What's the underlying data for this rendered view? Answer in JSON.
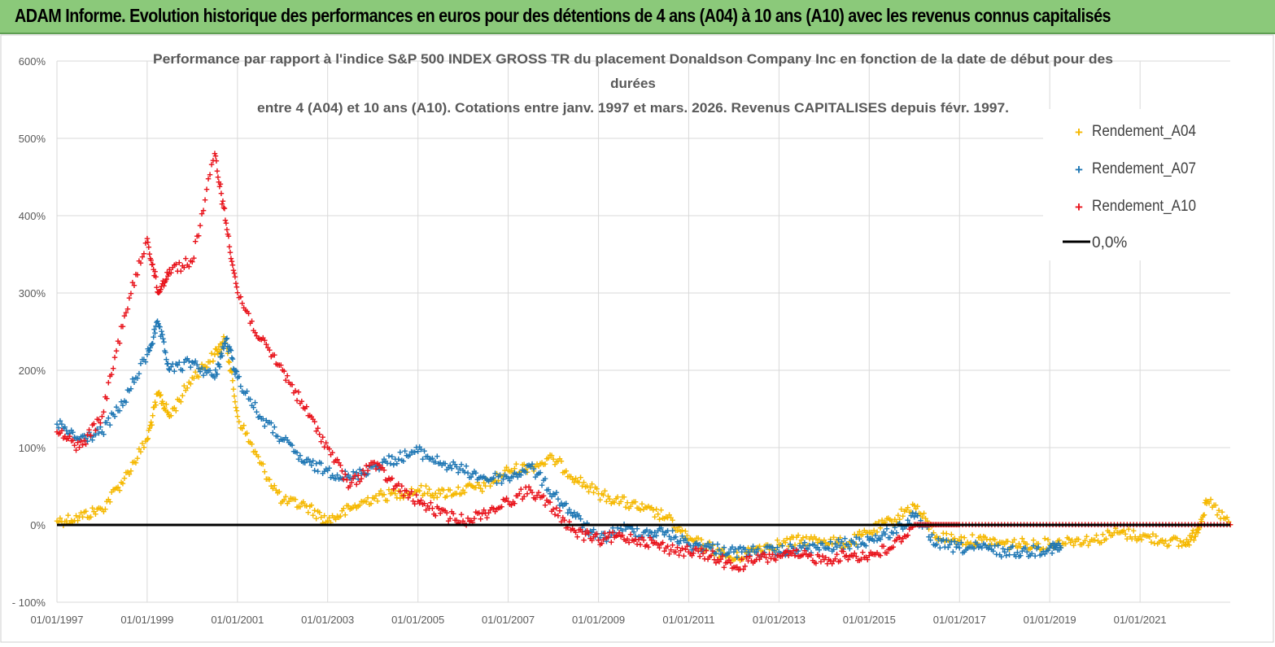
{
  "banner": {
    "title": "ADAM Informe. Evolution historique des performances en euros pour des détentions de 4 ans (A04) à 10 ans (A10) avec les revenus connus capitalisés"
  },
  "colors": {
    "banner_bg": "#8bc97a",
    "A04": "#f5b800",
    "A07": "#1f77b4",
    "A10": "#e8131b",
    "zero_line": "#000000",
    "grid": "#d9d9d9"
  },
  "chart_data": {
    "type": "scatter",
    "title_lines": [
      "Performance par rapport à l'indice S&P 500 INDEX GROSS TR  du placement Donaldson Company Inc en fonction de la date de début pour des",
      "durées",
      "entre 4 (A04) et 10 ans (A10).  Cotations entre janv. 1997 et mars. 2026.  Revenus CAPITALISES depuis févr. 1997."
    ],
    "xlabel": "",
    "ylabel": "",
    "x_range": [
      "1997-01-01",
      "2023-01-01"
    ],
    "x_ticks": [
      "01/01/1997",
      "01/01/1999",
      "01/01/2001",
      "01/01/2003",
      "01/01/2005",
      "01/01/2007",
      "01/01/2009",
      "01/01/2011",
      "01/01/2013",
      "01/01/2015",
      "01/01/2017",
      "01/01/2019",
      "01/01/2021"
    ],
    "ylim": [
      -100,
      600
    ],
    "y_ticks": [
      "600%",
      "500%",
      "400%",
      "300%",
      "200%",
      "100%",
      "0%",
      "- 100%"
    ],
    "grid": true,
    "legend_position": "top-right",
    "series": [
      {
        "name": "Rendement_A04",
        "x": [
          "1997-01-01",
          "1997-07-01",
          "1998-01-01",
          "1998-07-01",
          "1999-01-01",
          "1999-04-01",
          "1999-07-01",
          "2000-01-01",
          "2000-07-01",
          "2000-10-01",
          "2001-01-01",
          "2001-07-01",
          "2002-01-01",
          "2002-07-01",
          "2003-01-01",
          "2003-07-01",
          "2004-01-01",
          "2004-07-01",
          "2005-01-01",
          "2005-07-01",
          "2006-01-01",
          "2006-07-01",
          "2007-01-01",
          "2007-07-01",
          "2008-01-01",
          "2008-07-01",
          "2009-01-01",
          "2009-07-01",
          "2010-01-01",
          "2010-07-01",
          "2011-01-01",
          "2011-07-01",
          "2012-01-01",
          "2012-07-01",
          "2013-01-01",
          "2013-07-01",
          "2014-01-01",
          "2014-07-01",
          "2015-01-01",
          "2015-07-01",
          "2016-01-01",
          "2016-07-01",
          "2017-01-01",
          "2017-07-01",
          "2018-01-01",
          "2018-07-01",
          "2019-01-01",
          "2019-07-01",
          "2020-01-01",
          "2020-07-01",
          "2021-01-01",
          "2021-07-01",
          "2022-01-01",
          "2022-04-01",
          "2022-07-01",
          "2023-01-01"
        ],
        "values": [
          5,
          10,
          20,
          60,
          110,
          170,
          140,
          190,
          220,
          240,
          140,
          80,
          30,
          25,
          5,
          20,
          35,
          40,
          45,
          40,
          45,
          50,
          70,
          75,
          85,
          60,
          40,
          30,
          20,
          10,
          -20,
          -30,
          -45,
          -30,
          -25,
          -20,
          -20,
          -25,
          -10,
          5,
          25,
          -15,
          -20,
          -20,
          -25,
          -25,
          -25,
          -20,
          -20,
          -10,
          -15,
          -20,
          -25,
          -10,
          30,
          0
        ]
      },
      {
        "name": "Rendement_A07",
        "x": [
          "1997-01-01",
          "1997-07-01",
          "1998-01-01",
          "1998-07-01",
          "1999-01-01",
          "1999-04-01",
          "1999-07-01",
          "2000-01-01",
          "2000-07-01",
          "2000-10-01",
          "2001-01-01",
          "2001-07-01",
          "2002-01-01",
          "2002-07-01",
          "2003-01-01",
          "2003-07-01",
          "2004-01-01",
          "2004-07-01",
          "2005-01-01",
          "2005-07-01",
          "2006-01-01",
          "2006-07-01",
          "2007-01-01",
          "2007-07-01",
          "2008-01-01",
          "2008-07-01",
          "2009-01-01",
          "2009-07-01",
          "2010-01-01",
          "2010-07-01",
          "2011-01-01",
          "2011-07-01",
          "2012-01-01",
          "2012-07-01",
          "2013-01-01",
          "2013-07-01",
          "2014-01-01",
          "2014-07-01",
          "2015-01-01",
          "2015-07-01",
          "2016-01-01",
          "2016-07-01",
          "2017-01-01",
          "2017-07-01",
          "2018-01-01",
          "2018-07-01",
          "2019-01-01",
          "2019-04-01"
        ],
        "values": [
          130,
          110,
          120,
          160,
          220,
          260,
          200,
          210,
          190,
          240,
          190,
          140,
          110,
          80,
          70,
          60,
          75,
          85,
          95,
          80,
          70,
          60,
          60,
          75,
          40,
          10,
          -20,
          -5,
          -10,
          -10,
          -25,
          -30,
          -35,
          -35,
          -35,
          -30,
          -30,
          -25,
          -20,
          -10,
          10,
          -25,
          -30,
          -30,
          -35,
          -35,
          -30,
          -30
        ]
      },
      {
        "name": "Rendement_A10",
        "x": [
          "1997-01-01",
          "1997-07-01",
          "1998-01-01",
          "1998-07-01",
          "1999-01-01",
          "1999-04-01",
          "1999-07-01",
          "2000-01-01",
          "2000-07-01",
          "2000-10-01",
          "2001-01-01",
          "2001-07-01",
          "2002-01-01",
          "2002-07-01",
          "2003-01-01",
          "2003-07-01",
          "2004-01-01",
          "2004-07-01",
          "2005-01-01",
          "2005-07-01",
          "2006-01-01",
          "2006-07-01",
          "2007-01-01",
          "2007-07-01",
          "2008-01-01",
          "2008-07-01",
          "2009-01-01",
          "2009-07-01",
          "2010-01-01",
          "2010-07-01",
          "2011-01-01",
          "2011-07-01",
          "2012-01-01",
          "2012-07-01",
          "2013-01-01",
          "2013-07-01",
          "2014-01-01",
          "2014-07-01",
          "2015-01-01",
          "2015-07-01",
          "2016-01-01",
          "2016-07-01",
          "2017-01-01",
          "2018-01-01",
          "2019-01-01",
          "2020-01-01",
          "2021-01-01",
          "2022-01-01",
          "2023-01-01"
        ],
        "values": [
          120,
          100,
          140,
          270,
          370,
          300,
          330,
          340,
          480,
          390,
          300,
          240,
          200,
          150,
          100,
          50,
          80,
          50,
          30,
          15,
          5,
          15,
          30,
          45,
          20,
          -10,
          -20,
          -15,
          -20,
          -30,
          -35,
          -40,
          -55,
          -45,
          -40,
          -40,
          -45,
          -40,
          -40,
          -30,
          0,
          0,
          0,
          0,
          0,
          0,
          0,
          0,
          0
        ]
      }
    ],
    "reference_line": {
      "name": "0,0%",
      "y": 0
    }
  }
}
